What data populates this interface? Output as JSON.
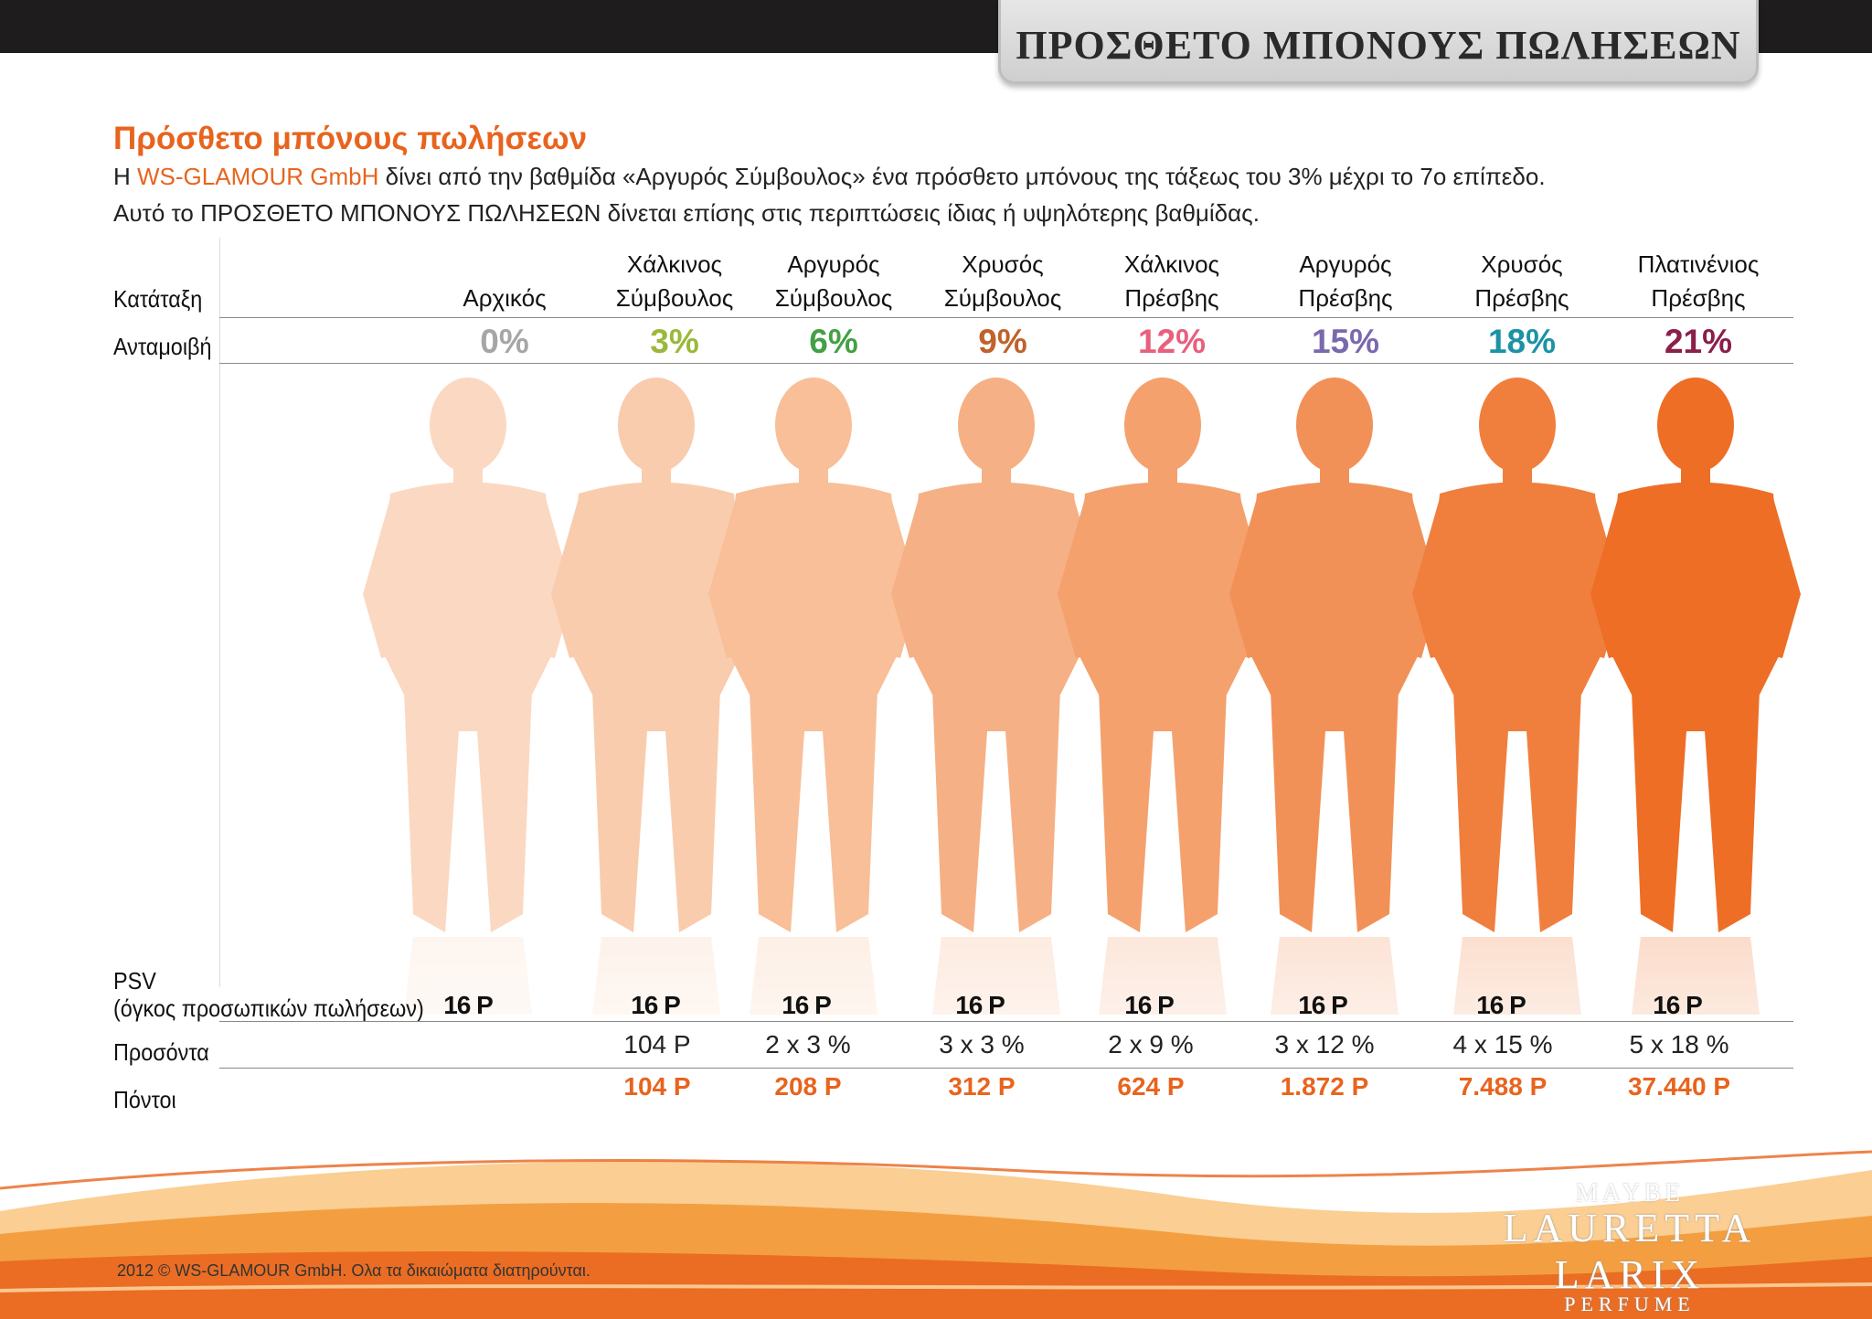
{
  "header": {
    "banner_title": "ΠΡΟΣΘΕΤΟ ΜΠΟΝΟΥΣ ΠΩΛΗΣΕΩΝ"
  },
  "intro": {
    "title": "Πρόσθετο μπόνους πωλήσεων",
    "line1_prefix": "Η",
    "brand": "WS-GLAMOUR GmbH",
    "line1_suffix": "δίνει από την βαθμίδα «Αργυρός Σύμβουλος» ένα πρόσθετο μπόνους της τάξεως του 3% μέχρι το 7ο επίπεδο.",
    "line2": "Αυτό το ΠΡΟΣΘΕΤΟ ΜΠΟΝΟΥΣ ΠΩΛΗΣΕΩΝ δίνεται επίσης στις περιπτώσεις ίδιας ή υψηλότερης βαθμίδας."
  },
  "labels": {
    "rank": "Κατάταξη",
    "reward": "Ανταμοιβή",
    "psv": "PSV",
    "psv_sub": "(όγκος προσωπικών πωλήσεων)",
    "qualifications": "Προσόντα",
    "points": "Πόντοι"
  },
  "levels": [
    {
      "line1": "",
      "line2": "Αρχικός",
      "pct": "0%",
      "color": "#a6a6a6",
      "psv": "16 P",
      "qual": "",
      "points": ""
    },
    {
      "line1": "Χάλκινος",
      "line2": "Σύμβουλος",
      "pct": "3%",
      "color": "#9bb83a",
      "psv": "16 P",
      "qual": "104 P",
      "points": "104 P"
    },
    {
      "line1": "Αργυρός",
      "line2": "Σύμβουλος",
      "pct": "6%",
      "color": "#44a047",
      "psv": "16 P",
      "qual": "2 x 3 %",
      "points": "208 P"
    },
    {
      "line1": "Χρυσός",
      "line2": "Σύμβουλος",
      "pct": "9%",
      "color": "#c0622a",
      "psv": "16 P",
      "qual": "3 x 3 %",
      "points": "312 P"
    },
    {
      "line1": "Χάλκινος",
      "line2": "Πρέσβης",
      "pct": "12%",
      "color": "#e8607e",
      "psv": "16 P",
      "qual": "2 x 9 %",
      "points": "624 P"
    },
    {
      "line1": "Αργυρός",
      "line2": "Πρέσβης",
      "pct": "15%",
      "color": "#7a69ad",
      "psv": "16 P",
      "qual": "3 x 12 %",
      "points": "1.872 P"
    },
    {
      "line1": "Χρυσός",
      "line2": "Πρέσβης",
      "pct": "18%",
      "color": "#1b93a4",
      "psv": "16 P",
      "qual": "4 x 15 %",
      "points": "7.488 P"
    },
    {
      "line1": "Πλατινένιος",
      "line2": "Πρέσβης",
      "pct": "21%",
      "color": "#8a1f4a",
      "psv": "16 P",
      "qual": "5 x 18 %",
      "points": "37.440 P"
    }
  ],
  "footer": {
    "copyright": "2012 © WS-GLAMOUR GmbH. Ολα τα δικαιώματα διατηρούνται.",
    "logo_top": "MAYBE",
    "logo_main": "LAURETTA LARIX",
    "logo_sub": "PERFUME"
  },
  "colors": {
    "accent": "#e8641e",
    "dark_bar": "#1e1c1d"
  }
}
